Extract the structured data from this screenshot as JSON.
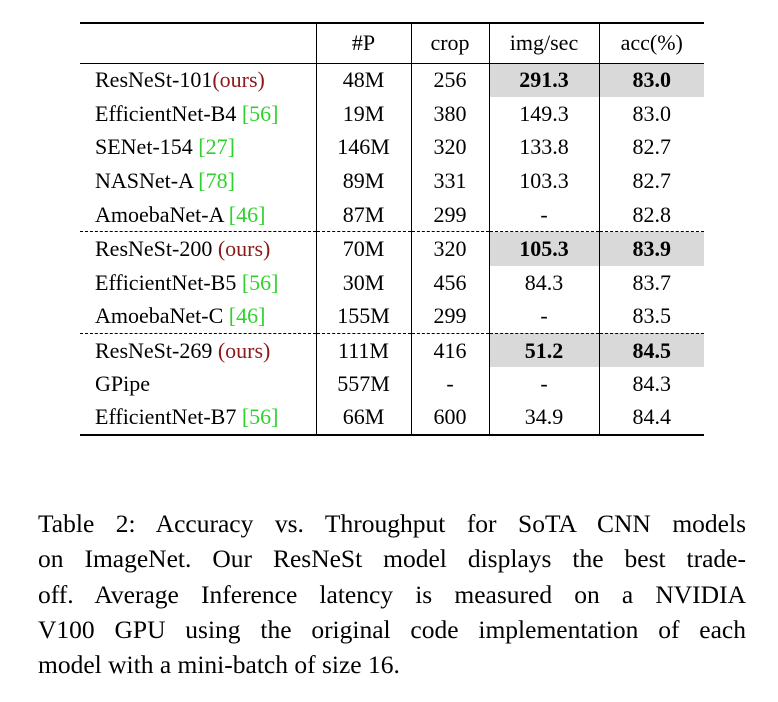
{
  "table": {
    "columns": [
      "",
      "#P",
      "crop",
      "img/sec",
      "acc(%)"
    ],
    "rows": [
      {
        "name": "ResNeSt-101",
        "tag": "(ours)",
        "cite": "",
        "params": "48M",
        "crop": "256",
        "img_sec": "291.3",
        "acc": "83.0",
        "highlight": true,
        "group_start": false
      },
      {
        "name": "EfficientNet-B4",
        "tag": "",
        "cite": "[56]",
        "params": "19M",
        "crop": "380",
        "img_sec": "149.3",
        "acc": "83.0",
        "highlight": false,
        "group_start": false
      },
      {
        "name": "SENet-154",
        "tag": "",
        "cite": "[27]",
        "params": "146M",
        "crop": "320",
        "img_sec": "133.8",
        "acc": "82.7",
        "highlight": false,
        "group_start": false
      },
      {
        "name": "NASNet-A",
        "tag": "",
        "cite": "[78]",
        "params": "89M",
        "crop": "331",
        "img_sec": "103.3",
        "acc": "82.7",
        "highlight": false,
        "group_start": false
      },
      {
        "name": "AmoebaNet-A",
        "tag": "",
        "cite": "[46]",
        "params": "87M",
        "crop": "299",
        "img_sec": "-",
        "acc": "82.8",
        "highlight": false,
        "group_start": false
      },
      {
        "name": "ResNeSt-200",
        "tag": "(ours)",
        "cite": "",
        "params": "70M",
        "crop": "320",
        "img_sec": "105.3",
        "acc": "83.9",
        "highlight": true,
        "group_start": true
      },
      {
        "name": "EfficientNet-B5",
        "tag": "",
        "cite": "[56]",
        "params": "30M",
        "crop": "456",
        "img_sec": "84.3",
        "acc": "83.7",
        "highlight": false,
        "group_start": false
      },
      {
        "name": "AmoebaNet-C",
        "tag": "",
        "cite": "[46]",
        "params": "155M",
        "crop": "299",
        "img_sec": "-",
        "acc": "83.5",
        "highlight": false,
        "group_start": false
      },
      {
        "name": "ResNeSt-269",
        "tag": "(ours)",
        "cite": "",
        "params": "111M",
        "crop": "416",
        "img_sec": "51.2",
        "acc": "84.5",
        "highlight": true,
        "group_start": true
      },
      {
        "name": "GPipe",
        "tag": "",
        "cite": "",
        "params": "557M",
        "crop": "-",
        "img_sec": "-",
        "acc": "84.3",
        "highlight": false,
        "group_start": false
      },
      {
        "name": "EfficientNet-B7",
        "tag": "",
        "cite": "[56]",
        "params": "66M",
        "crop": "600",
        "img_sec": "34.9",
        "acc": "84.4",
        "highlight": false,
        "group_start": false
      }
    ]
  },
  "caption": {
    "lines": [
      "Table 2: Accuracy vs. Throughput for SoTA CNN models",
      "on ImageNet. Our ResNeSt model displays the best trade-",
      "off. Average Inference latency is measured on a NVIDIA",
      "V100 GPU using the original code implementation of each",
      "model with a mini-batch of size 16."
    ]
  }
}
